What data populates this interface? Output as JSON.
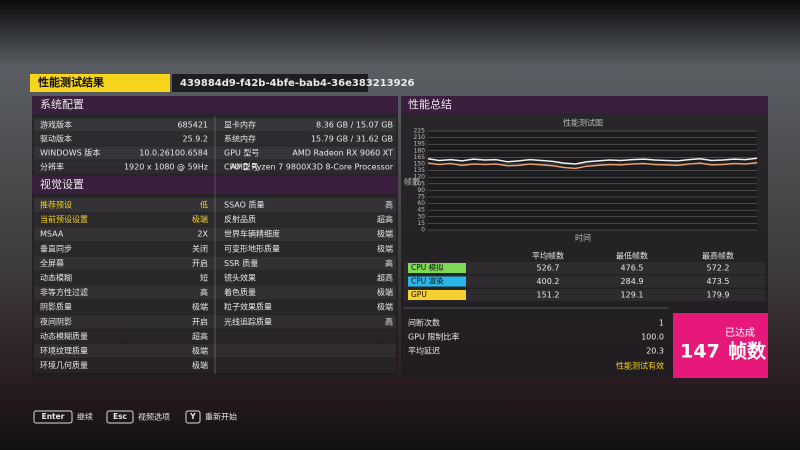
{
  "header": {
    "title": "性能测试结果",
    "id": "439884d9-f42b-4bfe-bab4-36e383213926"
  },
  "system": {
    "title": "系统配置",
    "rows": [
      [
        "游戏版本",
        "685421",
        "显卡内存",
        "8.36 GB / 15.07 GB"
      ],
      [
        "驱动版本",
        "25.9.2",
        "系统内存",
        "15.79 GB / 31.62 GB"
      ],
      [
        "WINDOWS 版本",
        "10.0.26100.6584",
        "GPU 型号",
        "AMD Radeon RX 9060 XT"
      ],
      [
        "分辨率",
        "1920 x 1080 @ 59Hz",
        "CPU 型号",
        "AMD Ryzen 7 9800X3D 8-Core Processor"
      ]
    ]
  },
  "visual": {
    "title": "视觉设置",
    "rows": [
      [
        "推荐预设",
        "低",
        "SSAO 质量",
        "高"
      ],
      [
        "当前预设设置",
        "极端",
        "反射品质",
        "超高"
      ],
      [
        "MSAA",
        "2X",
        "世界车辆精细度",
        "极端"
      ],
      [
        "垂直同步",
        "关闭",
        "可变形地形质量",
        "极端"
      ],
      [
        "全屏幕",
        "开启",
        "SSR 质量",
        "高"
      ],
      [
        "动态模糊",
        "短",
        "镜头效果",
        "超高"
      ],
      [
        "非等方性过滤",
        "高",
        "着色质量",
        "极端"
      ],
      [
        "阴影质量",
        "极端",
        "粒子效果质量",
        "极端"
      ],
      [
        "夜间阴影",
        "开启",
        "光线追踪质量",
        "高"
      ],
      [
        "动态模糊质量",
        "超高"
      ],
      [
        "环境纹理质量",
        "极端"
      ],
      [
        "环境几何质量",
        "极端"
      ]
    ]
  },
  "summary": {
    "title": "性能总结",
    "chart": {
      "type": "line",
      "title": "性能测试图",
      "ylabel": "帧数",
      "xlabel": "时间",
      "ylim": [
        0,
        225
      ],
      "yticks": [
        0,
        15,
        30,
        45,
        60,
        75,
        90,
        105,
        120,
        135,
        150,
        165,
        180,
        195,
        210,
        225
      ],
      "series": [
        {
          "color": "#f2f2f2",
          "values": [
            162,
            158,
            160,
            157,
            161,
            159,
            160,
            155,
            157,
            160,
            158,
            156,
            152,
            150,
            155,
            157,
            159,
            158,
            160,
            161,
            159,
            158,
            157,
            160,
            162,
            158,
            159,
            161,
            160,
            163
          ]
        },
        {
          "color": "#e8a070",
          "values": [
            152,
            149,
            151,
            147,
            150,
            149,
            150,
            146,
            147,
            150,
            148,
            146,
            142,
            140,
            145,
            147,
            149,
            148,
            150,
            151,
            149,
            148,
            147,
            150,
            152,
            148,
            149,
            151,
            150,
            153
          ]
        }
      ]
    },
    "table": {
      "columns": [
        "平均帧数",
        "最低帧数",
        "最高帧数"
      ],
      "rows": [
        {
          "label": "CPU 模拟",
          "color": "#7ed957",
          "values": [
            "526.7",
            "476.5",
            "572.2"
          ]
        },
        {
          "label": "CPU 渲染",
          "color": "#29b6e8",
          "values": [
            "400.2",
            "284.9",
            "473.5"
          ]
        },
        {
          "label": "GPU",
          "color": "#f5d130",
          "values": [
            "151.2",
            "129.1",
            "179.9"
          ]
        }
      ]
    },
    "stats": [
      [
        "间断次数",
        "1"
      ],
      [
        "GPU 限制比率",
        "100.0"
      ],
      [
        "平均延迟",
        "20.3"
      ]
    ],
    "valid": "性能测试有效",
    "result": {
      "caption": "已达成",
      "value": "147",
      "unit": "帧数"
    }
  },
  "footer": [
    {
      "key": "Enter",
      "label": "继续"
    },
    {
      "key": "Esc",
      "label": "视频选项"
    },
    {
      "key": "Y",
      "label": "重新开始"
    }
  ]
}
